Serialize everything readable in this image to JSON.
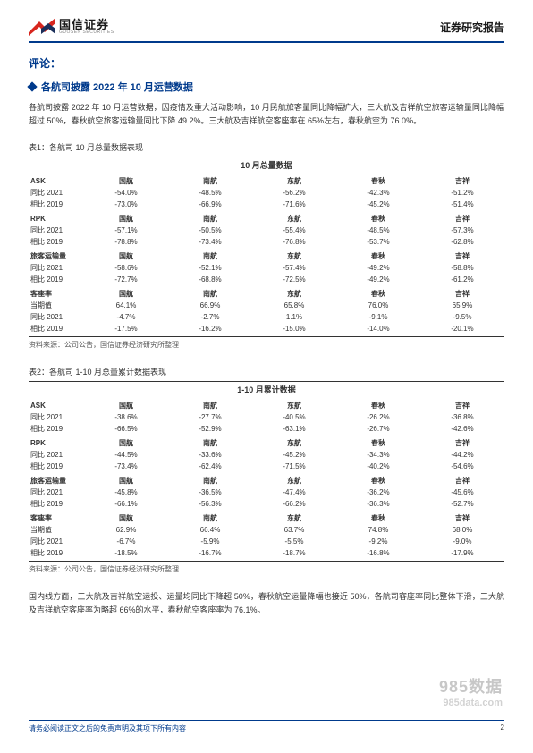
{
  "header": {
    "logo_cn": "国信证券",
    "logo_en": "GUOSEN SECURITIES",
    "doc_type": "证券研究报告"
  },
  "section_title": "评论：",
  "sub_title": "各航司披露 2022 年 10 月运营数据",
  "intro_para": "各航司披露 2022 年 10 月运营数据，因疫情及重大活动影响，10 月民航旅客量同比降幅扩大，三大航及吉祥航空旅客运输量同比降幅超过 50%，春秋航空旅客运输量同比下降 49.2%。三大航及吉祥航空客座率在 65%左右，春秋航空为 76.0%。",
  "table1": {
    "caption": "表1：各航司 10 月总量数据表现",
    "scope": "10 月总量数据",
    "cols": [
      "国航",
      "南航",
      "东航",
      "春秋",
      "吉祥"
    ],
    "blocks": [
      {
        "name": "ASK",
        "rows": [
          {
            "label": "同比 2021",
            "v": [
              "-54.0%",
              "-48.5%",
              "-56.2%",
              "-42.3%",
              "-51.2%"
            ]
          },
          {
            "label": "相比 2019",
            "v": [
              "-73.0%",
              "-66.9%",
              "-71.6%",
              "-45.2%",
              "-51.4%"
            ]
          }
        ]
      },
      {
        "name": "RPK",
        "rows": [
          {
            "label": "同比 2021",
            "v": [
              "-57.1%",
              "-50.5%",
              "-55.4%",
              "-48.5%",
              "-57.3%"
            ]
          },
          {
            "label": "相比 2019",
            "v": [
              "-78.8%",
              "-73.4%",
              "-76.8%",
              "-53.7%",
              "-62.8%"
            ]
          }
        ]
      },
      {
        "name": "旅客运输量",
        "rows": [
          {
            "label": "同比 2021",
            "v": [
              "-58.6%",
              "-52.1%",
              "-57.4%",
              "-49.2%",
              "-58.8%"
            ]
          },
          {
            "label": "相比 2019",
            "v": [
              "-72.7%",
              "-68.8%",
              "-72.5%",
              "-49.2%",
              "-61.2%"
            ]
          }
        ]
      },
      {
        "name": "客座率",
        "rows": [
          {
            "label": "当期值",
            "v": [
              "64.1%",
              "66.9%",
              "65.8%",
              "76.0%",
              "65.9%"
            ]
          },
          {
            "label": "同比 2021",
            "v": [
              "-4.7%",
              "-2.7%",
              "1.1%",
              "-9.1%",
              "-9.5%"
            ]
          },
          {
            "label": "相比 2019",
            "v": [
              "-17.5%",
              "-16.2%",
              "-15.0%",
              "-14.0%",
              "-20.1%"
            ]
          }
        ]
      }
    ],
    "source": "资料来源：公司公告，国信证券经济研究所整理"
  },
  "table2": {
    "caption": "表2：各航司 1-10 月总量累计数据表现",
    "scope": "1-10 月累计数据",
    "cols": [
      "国航",
      "南航",
      "东航",
      "春秋",
      "吉祥"
    ],
    "blocks": [
      {
        "name": "ASK",
        "rows": [
          {
            "label": "同比 2021",
            "v": [
              "-38.6%",
              "-27.7%",
              "-40.5%",
              "-26.2%",
              "-36.8%"
            ]
          },
          {
            "label": "相比 2019",
            "v": [
              "-66.5%",
              "-52.9%",
              "-63.1%",
              "-26.7%",
              "-42.6%"
            ]
          }
        ]
      },
      {
        "name": "RPK",
        "rows": [
          {
            "label": "同比 2021",
            "v": [
              "-44.5%",
              "-33.6%",
              "-45.2%",
              "-34.3%",
              "-44.2%"
            ]
          },
          {
            "label": "相比 2019",
            "v": [
              "-73.4%",
              "-62.4%",
              "-71.5%",
              "-40.2%",
              "-54.6%"
            ]
          }
        ]
      },
      {
        "name": "旅客运输量",
        "rows": [
          {
            "label": "同比 2021",
            "v": [
              "-45.8%",
              "-36.5%",
              "-47.4%",
              "-36.2%",
              "-45.6%"
            ]
          },
          {
            "label": "相比 2019",
            "v": [
              "-66.1%",
              "-56.3%",
              "-66.2%",
              "-36.3%",
              "-52.7%"
            ]
          }
        ]
      },
      {
        "name": "客座率",
        "rows": [
          {
            "label": "当期值",
            "v": [
              "62.9%",
              "66.4%",
              "63.7%",
              "74.8%",
              "68.0%"
            ]
          },
          {
            "label": "同比 2021",
            "v": [
              "-6.7%",
              "-5.9%",
              "-5.5%",
              "-9.2%",
              "-9.0%"
            ]
          },
          {
            "label": "相比 2019",
            "v": [
              "-18.5%",
              "-16.7%",
              "-18.7%",
              "-16.8%",
              "-17.9%"
            ]
          }
        ]
      }
    ],
    "source": "资料来源：公司公告，国信证券经济研究所整理"
  },
  "closing_para": "国内线方面，三大航及吉祥航空运投、运量均同比下降超 50%，春秋航空运量降幅也接近 50%，各航司客座率同比整体下滑，三大航及吉祥航空客座率为略超 66%的水平，春秋航空客座率为 76.1%。",
  "footer": {
    "disclaimer": "请务必阅读正文之后的免责声明及其项下所有内容",
    "page": "2"
  },
  "watermark": {
    "main": "985数据",
    "sub": "985data.com"
  },
  "colors": {
    "brand": "#003a8c",
    "logo_red": "#d7261e",
    "logo_navy": "#1b2f5a"
  }
}
